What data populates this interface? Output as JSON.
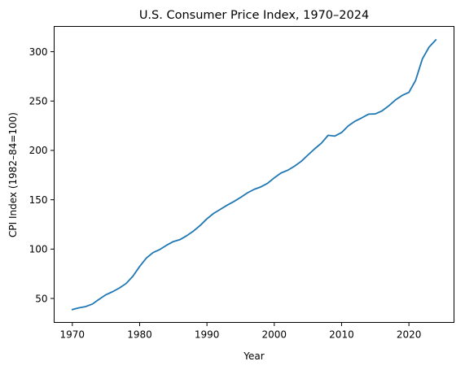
{
  "chart_data": {
    "type": "line",
    "title": "U.S. Consumer Price Index, 1970–2024",
    "xlabel": "Year",
    "ylabel": "CPI Index (1982–84=100)",
    "xlim": [
      1967.3,
      2026.7
    ],
    "ylim": [
      25.7,
      325.6
    ],
    "x_ticks": [
      1970,
      1980,
      1990,
      2000,
      2010,
      2020
    ],
    "y_ticks": [
      50,
      100,
      150,
      200,
      250,
      300
    ],
    "grid": false,
    "legend": "none",
    "series": [
      {
        "color": "#1f77b4",
        "x": [
          1970,
          1971,
          1972,
          1973,
          1974,
          1975,
          1976,
          1977,
          1978,
          1979,
          1980,
          1981,
          1982,
          1983,
          1984,
          1985,
          1986,
          1987,
          1988,
          1989,
          1990,
          1991,
          1992,
          1993,
          1994,
          1995,
          1996,
          1997,
          1998,
          1999,
          2000,
          2001,
          2002,
          2003,
          2004,
          2005,
          2006,
          2007,
          2008,
          2009,
          2010,
          2011,
          2012,
          2013,
          2014,
          2015,
          2016,
          2017,
          2018,
          2019,
          2020,
          2021,
          2022,
          2023,
          2024
        ],
        "values": [
          38.8,
          40.5,
          41.8,
          44.4,
          49.3,
          53.8,
          56.9,
          60.6,
          65.2,
          72.6,
          82.4,
          90.9,
          96.5,
          99.6,
          103.9,
          107.6,
          109.6,
          113.6,
          118.3,
          124.0,
          130.7,
          136.2,
          140.3,
          144.5,
          148.2,
          152.4,
          156.9,
          160.5,
          163.0,
          166.6,
          172.2,
          177.1,
          179.9,
          184.0,
          188.9,
          195.3,
          201.6,
          207.3,
          215.3,
          214.5,
          218.1,
          224.9,
          229.6,
          233.0,
          236.7,
          237.0,
          240.0,
          245.1,
          251.1,
          255.7,
          258.8,
          271.0,
          292.7,
          304.7,
          312.0
        ]
      }
    ]
  }
}
